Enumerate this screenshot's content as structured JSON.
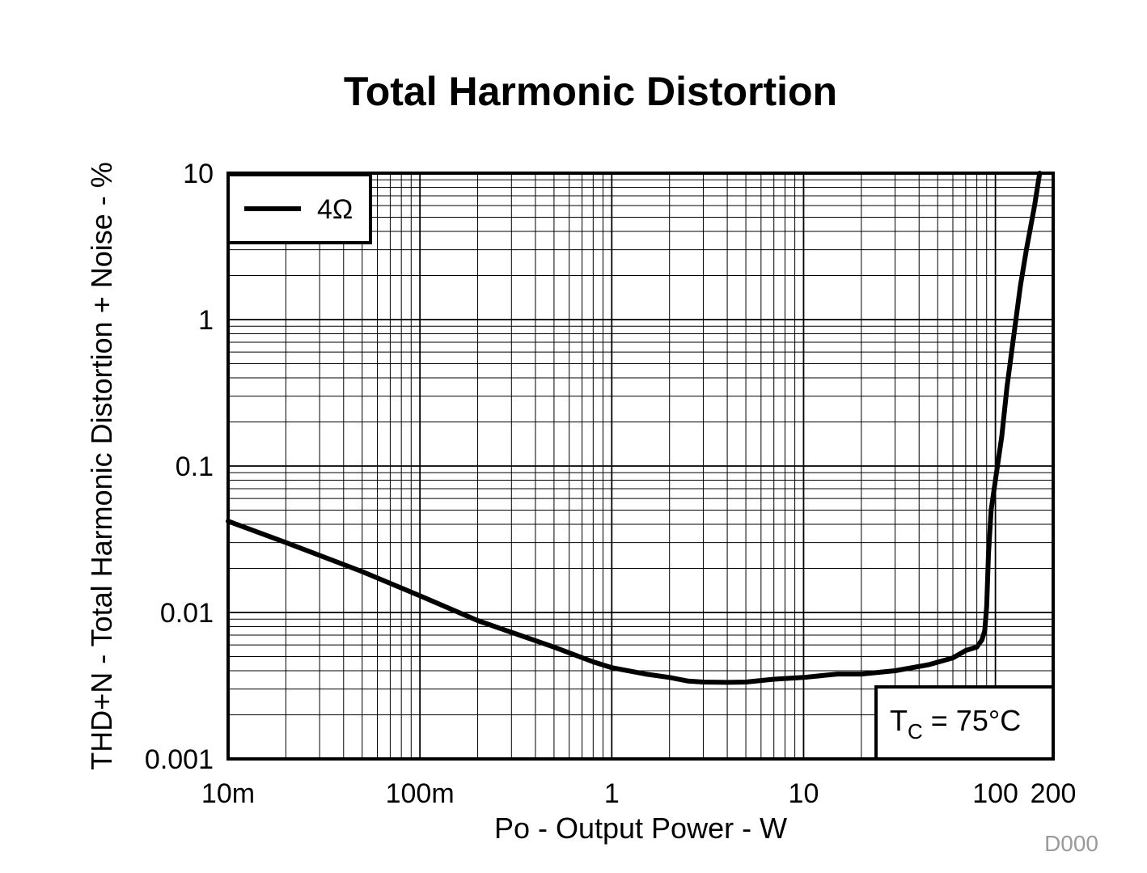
{
  "chart_data": {
    "type": "line",
    "title": "Total Harmonic Distortion",
    "xlabel": "Po - Output Power - W",
    "ylabel": "THD+N - Total Harmonic Distortion + Noise - %",
    "xscale": "log",
    "yscale": "log",
    "xlim": [
      0.01,
      200
    ],
    "ylim": [
      0.001,
      10
    ],
    "grid": true,
    "legend_position": "top-left",
    "x_ticks": [
      {
        "value": 0.01,
        "label": "10m"
      },
      {
        "value": 0.1,
        "label": "100m"
      },
      {
        "value": 1,
        "label": "1"
      },
      {
        "value": 10,
        "label": "10"
      },
      {
        "value": 100,
        "label": "100"
      },
      {
        "value": 200,
        "label": "200"
      }
    ],
    "y_ticks": [
      {
        "value": 0.001,
        "label": "0.001"
      },
      {
        "value": 0.01,
        "label": "0.01"
      },
      {
        "value": 0.1,
        "label": "0.1"
      },
      {
        "value": 1,
        "label": "1"
      },
      {
        "value": 10,
        "label": "10"
      }
    ],
    "annotation": {
      "main": "T",
      "sub": "C",
      "rest": " = 75°C"
    },
    "series": [
      {
        "name": "4Ω",
        "color": "#000000",
        "points": [
          [
            0.01,
            0.042
          ],
          [
            0.02,
            0.03
          ],
          [
            0.05,
            0.019
          ],
          [
            0.1,
            0.013
          ],
          [
            0.2,
            0.0088
          ],
          [
            0.5,
            0.0058
          ],
          [
            0.8,
            0.0046
          ],
          [
            1.0,
            0.0042
          ],
          [
            1.5,
            0.0038
          ],
          [
            2.0,
            0.0036
          ],
          [
            2.5,
            0.0034
          ],
          [
            3.0,
            0.00335
          ],
          [
            4.0,
            0.00333
          ],
          [
            5.0,
            0.00335
          ],
          [
            7.0,
            0.0035
          ],
          [
            10,
            0.0036
          ],
          [
            15,
            0.0038
          ],
          [
            20,
            0.0038
          ],
          [
            30,
            0.004
          ],
          [
            45,
            0.0044
          ],
          [
            60,
            0.0049
          ],
          [
            70,
            0.0055
          ],
          [
            80,
            0.0058
          ],
          [
            85,
            0.0065
          ],
          [
            88,
            0.0075
          ],
          [
            90,
            0.011
          ],
          [
            92,
            0.025
          ],
          [
            95,
            0.05
          ],
          [
            100,
            0.08
          ],
          [
            108,
            0.16
          ],
          [
            115,
            0.35
          ],
          [
            125,
            0.8
          ],
          [
            135,
            1.7
          ],
          [
            145,
            3.0
          ],
          [
            160,
            6.0
          ],
          [
            170,
            10
          ]
        ]
      }
    ]
  },
  "doc_id": "D000"
}
